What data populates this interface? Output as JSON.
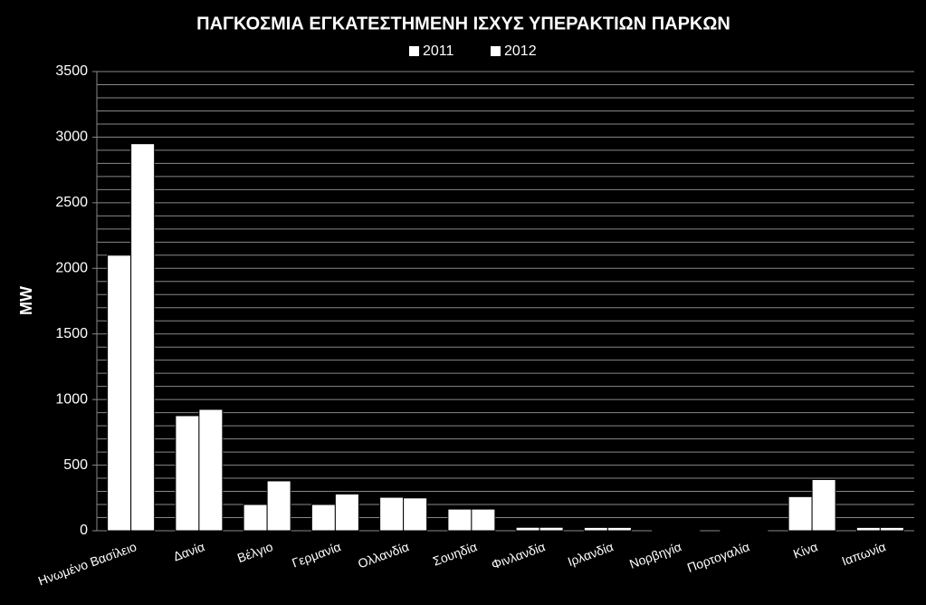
{
  "chart_data": {
    "type": "bar",
    "title": "ΠΑΓΚΟΣΜΙΑ ΕΓΚΑΤΕΣΤΗΜΕΝΗ ΙΣΧΥΣ ΥΠΕΡΑΚΤΙΩΝ ΠΑΡΚΩΝ",
    "y_label": "MW",
    "categories": [
      "Ηνωμένο Βασίλειο",
      "Δανία",
      "Βέλγιο",
      "Γερμανία",
      "Ολλανδία",
      "Σουηδία",
      "Φινλανδία",
      "Ιρλανδία",
      "Νορβηγία",
      "Πορτογαλία",
      "Κίνα",
      "Ιαπωνία"
    ],
    "series": [
      {
        "name": "2011",
        "color": "#ffffff",
        "values": [
          2100,
          877,
          200,
          200,
          255,
          165,
          26,
          25,
          2,
          2,
          260,
          25
        ]
      },
      {
        "name": "2012",
        "color": "#ffffff",
        "values": [
          2950,
          925,
          380,
          280,
          250,
          165,
          26,
          25,
          2,
          2,
          390,
          25
        ]
      }
    ],
    "ylim": [
      0,
      3500
    ],
    "yticks": [
      0,
      500,
      1000,
      1500,
      2000,
      2500,
      3000,
      3500
    ],
    "ygrid_step": 100,
    "grid": true,
    "legend": "top"
  }
}
